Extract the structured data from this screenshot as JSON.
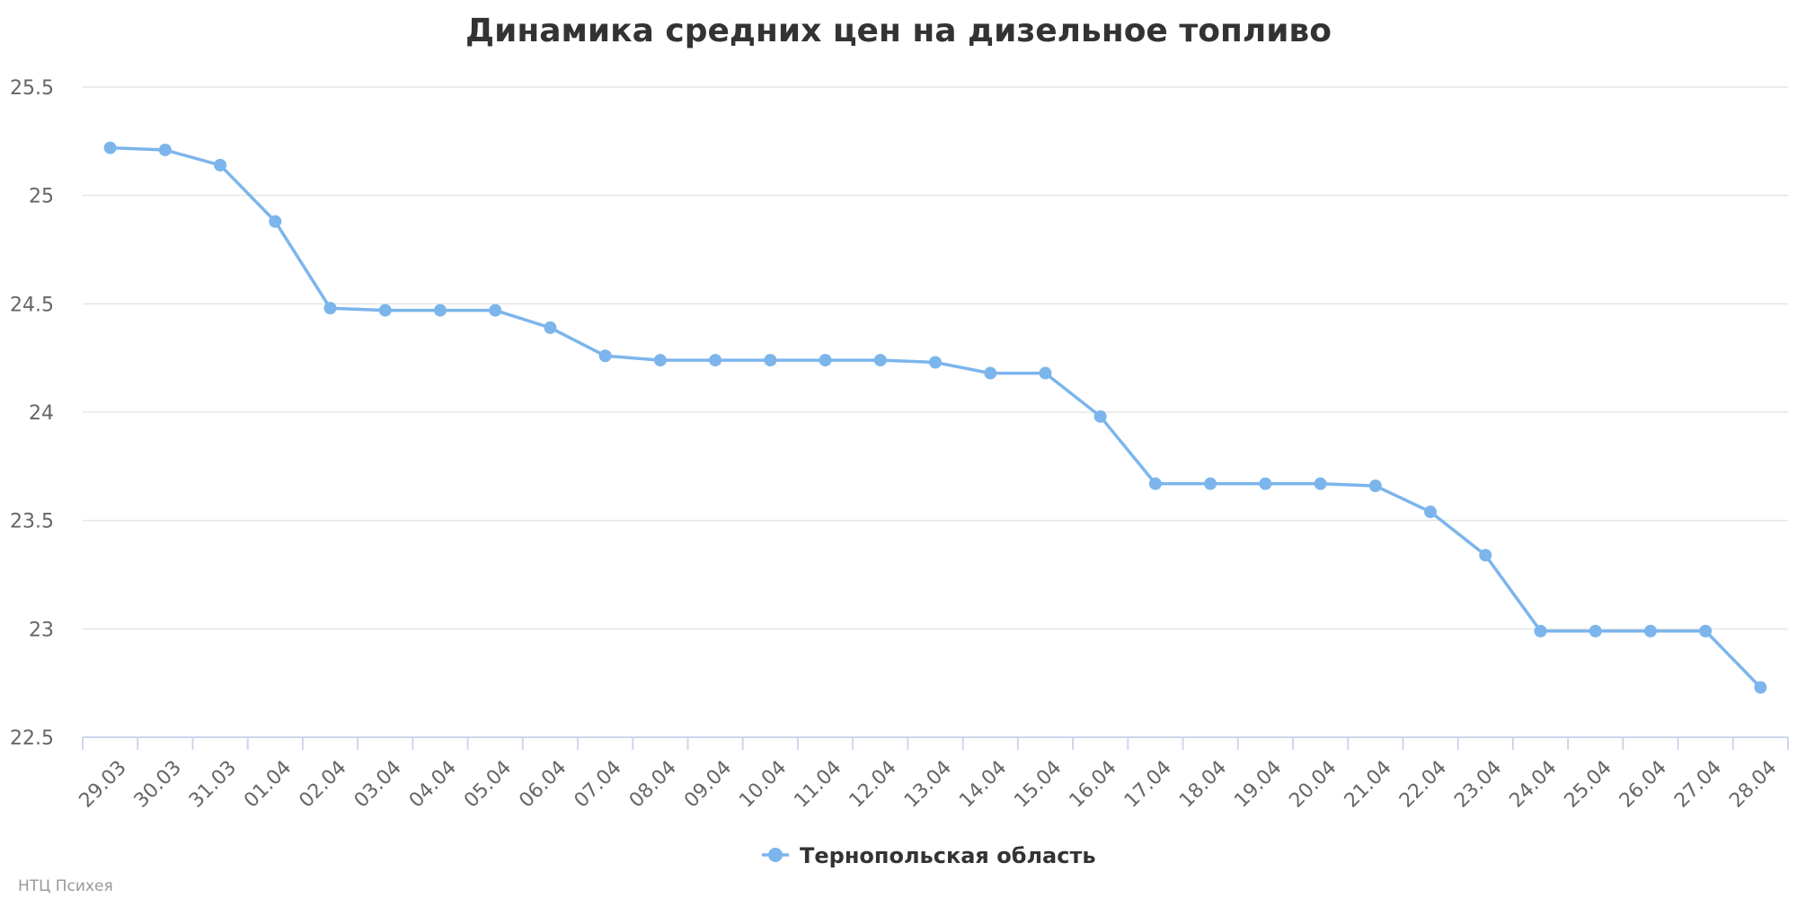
{
  "chart_data": {
    "type": "line",
    "title": "Динамика средних цен на дизельное топливо",
    "xlabel": "",
    "ylabel": "",
    "x": [
      "29.03",
      "30.03",
      "31.03",
      "01.04",
      "02.04",
      "03.04",
      "04.04",
      "05.04",
      "06.04",
      "07.04",
      "08.04",
      "09.04",
      "10.04",
      "11.04",
      "12.04",
      "13.04",
      "14.04",
      "15.04",
      "16.04",
      "17.04",
      "18.04",
      "19.04",
      "20.04",
      "21.04",
      "22.04",
      "23.04",
      "24.04",
      "25.04",
      "26.04",
      "27.04",
      "28.04"
    ],
    "ylim": [
      22.5,
      25.5
    ],
    "yticks": [
      "22.5",
      "23",
      "23.5",
      "24",
      "24.5",
      "25",
      "25.5"
    ],
    "grid": true,
    "legend_position": "bottom-center",
    "series": [
      {
        "name": "Тернопольская область",
        "color": "#7cb5ec",
        "values": [
          25.22,
          25.21,
          25.14,
          24.88,
          24.48,
          24.47,
          24.47,
          24.47,
          24.39,
          24.26,
          24.24,
          24.24,
          24.24,
          24.24,
          24.24,
          24.23,
          24.18,
          24.18,
          23.98,
          23.67,
          23.67,
          23.67,
          23.67,
          23.66,
          23.54,
          23.34,
          22.99,
          22.99,
          22.99,
          22.99,
          22.73
        ]
      }
    ]
  },
  "credit": "НТЦ Психея"
}
